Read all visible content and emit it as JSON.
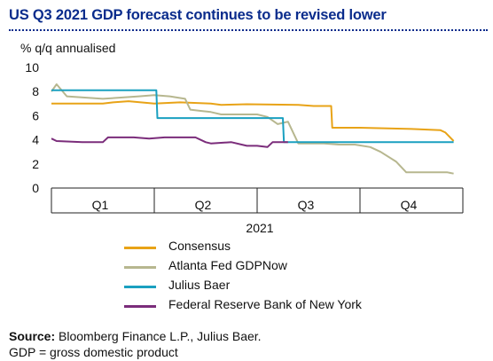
{
  "header": {
    "title": "US Q3 2021 GDP forecast continues to be revised lower"
  },
  "chart_data": {
    "type": "line",
    "title": "US Q3 2021 GDP forecast continues to be revised lower",
    "ylabel": "% q/q annualised",
    "xlabel": "2021",
    "ylim": [
      0,
      10
    ],
    "yticks": [
      "0",
      "2",
      "4",
      "6",
      "8",
      "10"
    ],
    "xlim": [
      0,
      4
    ],
    "categories": [
      "Q1",
      "Q2",
      "Q3",
      "Q4"
    ],
    "grid": false,
    "legend_position": "bottom",
    "series": [
      {
        "name": "Consensus",
        "color": "#e8a317",
        "x": [
          0,
          0.5,
          0.6,
          0.75,
          1.0,
          1.25,
          1.55,
          1.65,
          1.9,
          2.4,
          2.55,
          2.65,
          2.72,
          2.73,
          3.0,
          3.5,
          3.78,
          3.83,
          3.91
        ],
        "y": [
          7.0,
          7.0,
          7.1,
          7.2,
          7.0,
          7.1,
          7.0,
          6.9,
          6.95,
          6.9,
          6.8,
          6.8,
          6.8,
          5.0,
          5.0,
          4.9,
          4.8,
          4.6,
          3.9
        ]
      },
      {
        "name": "Atlanta Fed GDPNow",
        "color": "#b7b78f",
        "x": [
          0,
          0.05,
          0.15,
          0.5,
          0.85,
          1.0,
          1.15,
          1.3,
          1.35,
          1.45,
          1.55,
          1.65,
          1.85,
          2.0,
          2.1,
          2.2,
          2.3,
          2.4,
          2.5,
          2.65,
          2.8,
          2.95,
          3.1,
          3.2,
          3.35,
          3.45,
          3.7,
          3.85,
          3.91
        ],
        "y": [
          8.0,
          8.6,
          7.6,
          7.4,
          7.6,
          7.7,
          7.6,
          7.4,
          6.5,
          6.4,
          6.3,
          6.1,
          6.1,
          6.1,
          5.9,
          5.3,
          5.5,
          3.7,
          3.7,
          3.7,
          3.6,
          3.6,
          3.4,
          3.0,
          2.2,
          1.3,
          1.3,
          1.3,
          1.2
        ]
      },
      {
        "name": "Julius Baer",
        "color": "#1aa0c0",
        "x": [
          0,
          1.02,
          1.03,
          2.25,
          2.26,
          3.91
        ],
        "y": [
          8.1,
          8.1,
          5.8,
          5.8,
          3.8,
          3.8
        ]
      },
      {
        "name": "Federal Reserve Bank of New York",
        "color": "#7b2d7b",
        "x": [
          0,
          0.05,
          0.3,
          0.5,
          0.55,
          0.8,
          0.95,
          1.1,
          1.4,
          1.5,
          1.55,
          1.75,
          1.9,
          2.0,
          2.1,
          2.15,
          2.3
        ],
        "y": [
          4.1,
          3.9,
          3.8,
          3.8,
          4.2,
          4.2,
          4.1,
          4.2,
          4.2,
          3.8,
          3.7,
          3.8,
          3.5,
          3.5,
          3.4,
          3.8,
          3.8
        ]
      }
    ]
  },
  "legend": {
    "items": [
      {
        "label": "Consensus",
        "color": "#e8a317"
      },
      {
        "label": "Atlanta Fed GDPNow",
        "color": "#b7b78f"
      },
      {
        "label": "Julius Baer",
        "color": "#1aa0c0"
      },
      {
        "label": "Federal Reserve Bank of New York",
        "color": "#7b2d7b"
      }
    ]
  },
  "footer": {
    "source_label": "Source:",
    "source_text": " Bloomberg Finance L.P., Julius Baer.",
    "note": "GDP = gross domestic product"
  }
}
